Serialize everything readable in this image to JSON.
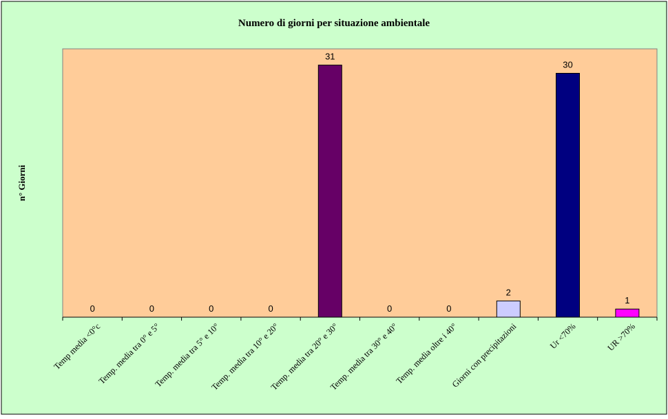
{
  "chart_data": {
    "type": "bar",
    "title": "Numero di giorni per situazione ambientale",
    "ylabel": "n° Giorni",
    "xlabel": "",
    "categories": [
      "Temp media <0°c",
      "Temp. media tra 0° e 5°",
      "Temp. media tra 5° e 10°",
      "Temp. media tra 10° e 20°",
      "Temp. media tra 20° e 30°",
      "Temp. media tra 30° e 40°",
      "Temp. media oltre i 40°",
      "Giorni con precipitazioni",
      "Ur  <70%",
      "UR >70%"
    ],
    "values": [
      0,
      0,
      0,
      0,
      31,
      0,
      0,
      2,
      30,
      1
    ],
    "data_labels": [
      "0",
      "0",
      "0",
      "0",
      "31",
      "0",
      "0",
      "2",
      "30",
      "1"
    ],
    "bar_colors": [
      "#660066",
      "#660066",
      "#660066",
      "#660066",
      "#660066",
      "#660066",
      "#660066",
      "#ccccff",
      "#000080",
      "#ff00ff"
    ],
    "ylim": [
      0,
      33
    ],
    "grid": false,
    "legend": "none",
    "colors": {
      "outer_background": "#ccffcc",
      "plot_background": "#ffcc99",
      "axis": "#000000"
    }
  }
}
